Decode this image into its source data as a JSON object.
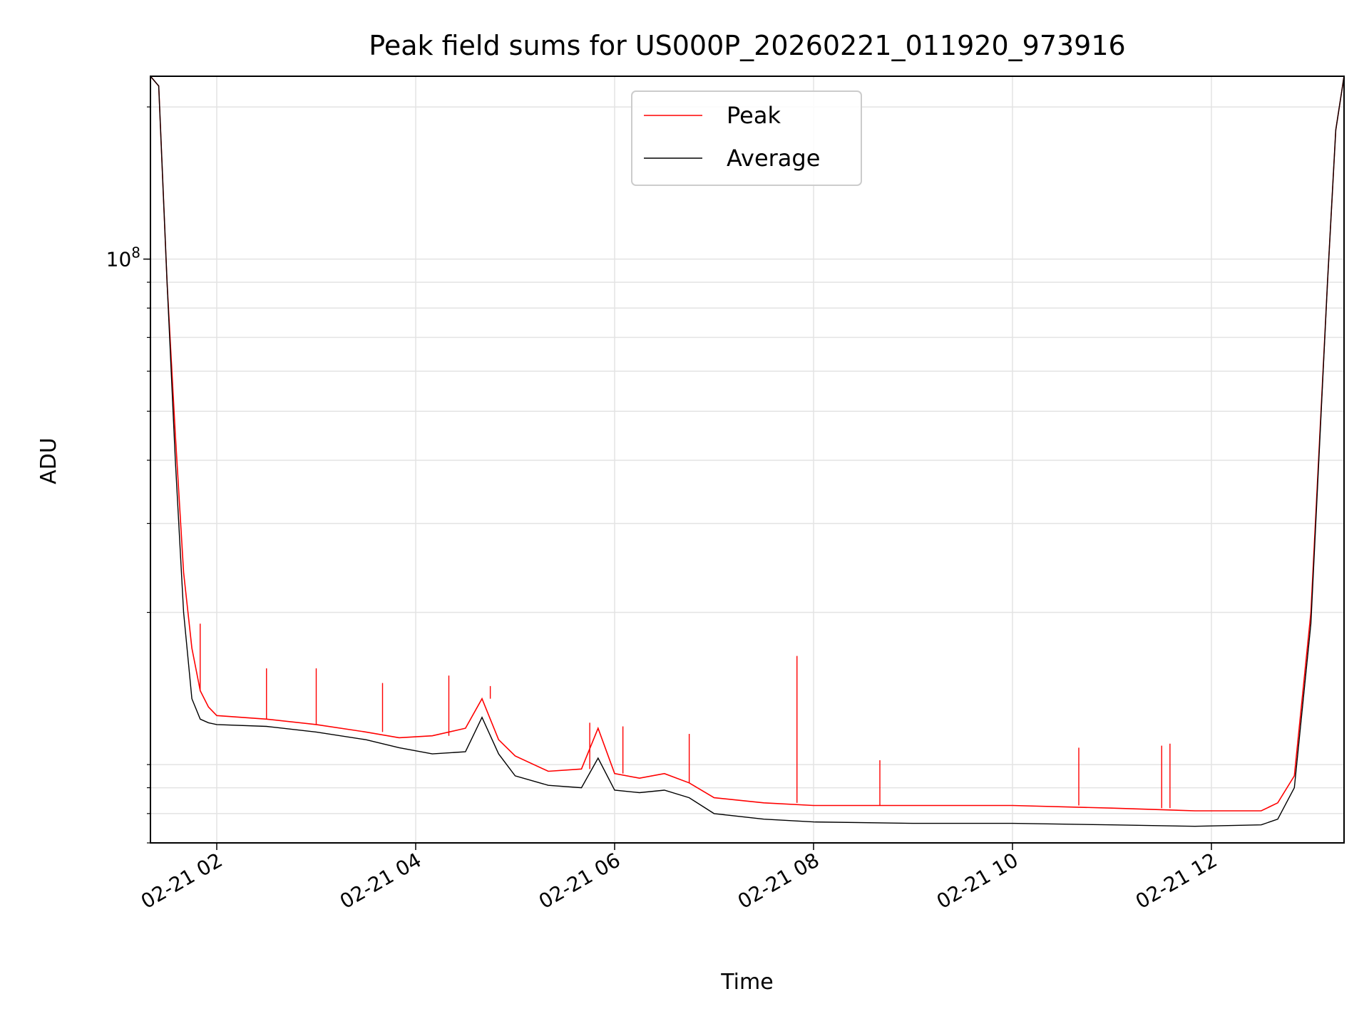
{
  "chart_data": {
    "type": "line",
    "title": "Peak field sums for US000P_20260221_011920_973916",
    "xlabel": "Time",
    "ylabel": "ADU",
    "y_scale": "log",
    "ylim": [
      7000000,
      230000000
    ],
    "xlim": [
      "2026-02-21T01:20",
      "2026-02-21T13:20"
    ],
    "grid": true,
    "legend_position": "top-center",
    "x_ticks": [
      {
        "at": "2026-02-21T02:00",
        "label": "02-21 02"
      },
      {
        "at": "2026-02-21T04:00",
        "label": "02-21 04"
      },
      {
        "at": "2026-02-21T06:00",
        "label": "02-21 06"
      },
      {
        "at": "2026-02-21T08:00",
        "label": "02-21 08"
      },
      {
        "at": "2026-02-21T10:00",
        "label": "02-21 10"
      },
      {
        "at": "2026-02-21T12:00",
        "label": "02-21 12"
      }
    ],
    "y_major_tick": {
      "value": 100000000,
      "label_base": "10",
      "label_exp": "8"
    },
    "x": [
      "2026-02-21T01:20",
      "2026-02-21T01:25",
      "2026-02-21T01:30",
      "2026-02-21T01:35",
      "2026-02-21T01:40",
      "2026-02-21T01:45",
      "2026-02-21T01:50",
      "2026-02-21T01:55",
      "2026-02-21T02:00",
      "2026-02-21T02:30",
      "2026-02-21T03:00",
      "2026-02-21T03:30",
      "2026-02-21T03:50",
      "2026-02-21T04:10",
      "2026-02-21T04:30",
      "2026-02-21T04:40",
      "2026-02-21T04:50",
      "2026-02-21T05:00",
      "2026-02-21T05:20",
      "2026-02-21T05:40",
      "2026-02-21T05:50",
      "2026-02-21T06:00",
      "2026-02-21T06:15",
      "2026-02-21T06:30",
      "2026-02-21T06:45",
      "2026-02-21T07:00",
      "2026-02-21T07:30",
      "2026-02-21T08:00",
      "2026-02-21T09:00",
      "2026-02-21T10:00",
      "2026-02-21T11:00",
      "2026-02-21T11:50",
      "2026-02-21T12:30",
      "2026-02-21T12:40",
      "2026-02-21T12:50",
      "2026-02-21T13:00",
      "2026-02-21T13:10",
      "2026-02-21T13:15",
      "2026-02-21T13:20"
    ],
    "series": [
      {
        "name": "Peak",
        "color": "#ff0000",
        "values": [
          230000000,
          220000000,
          90000000,
          45000000,
          24000000,
          17000000,
          14000000,
          13000000,
          12500000,
          12300000,
          12000000,
          11600000,
          11300000,
          11400000,
          11800000,
          13500000,
          11200000,
          10400000,
          9700000,
          9800000,
          11800000,
          9600000,
          9400000,
          9600000,
          9200000,
          8600000,
          8400000,
          8300000,
          8300000,
          8300000,
          8200000,
          8100000,
          8100000,
          8400000,
          9500000,
          20000000,
          90000000,
          180000000,
          230000000
        ],
        "spikes": [
          {
            "x": "2026-02-21T01:50",
            "value": 19000000
          },
          {
            "x": "2026-02-21T02:30",
            "value": 15500000
          },
          {
            "x": "2026-02-21T03:00",
            "value": 15500000
          },
          {
            "x": "2026-02-21T03:40",
            "value": 14500000
          },
          {
            "x": "2026-02-21T04:20",
            "value": 15000000
          },
          {
            "x": "2026-02-21T04:45",
            "value": 14300000
          },
          {
            "x": "2026-02-21T05:45",
            "value": 12100000
          },
          {
            "x": "2026-02-21T06:05",
            "value": 11900000
          },
          {
            "x": "2026-02-21T06:45",
            "value": 11500000
          },
          {
            "x": "2026-02-21T07:50",
            "value": 16400000
          },
          {
            "x": "2026-02-21T08:40",
            "value": 10200000
          },
          {
            "x": "2026-02-21T10:40",
            "value": 10800000
          },
          {
            "x": "2026-02-21T11:30",
            "value": 10900000
          },
          {
            "x": "2026-02-21T11:35",
            "value": 11000000
          }
        ]
      },
      {
        "name": "Average",
        "color": "#000000",
        "values": [
          230000000,
          220000000,
          90000000,
          40000000,
          20000000,
          13500000,
          12300000,
          12100000,
          12000000,
          11900000,
          11600000,
          11200000,
          10800000,
          10500000,
          10600000,
          12400000,
          10500000,
          9500000,
          9100000,
          9000000,
          10300000,
          8900000,
          8800000,
          8900000,
          8600000,
          8000000,
          7800000,
          7700000,
          7650000,
          7650000,
          7600000,
          7550000,
          7600000,
          7800000,
          9000000,
          19000000,
          90000000,
          180000000,
          230000000
        ]
      }
    ]
  }
}
